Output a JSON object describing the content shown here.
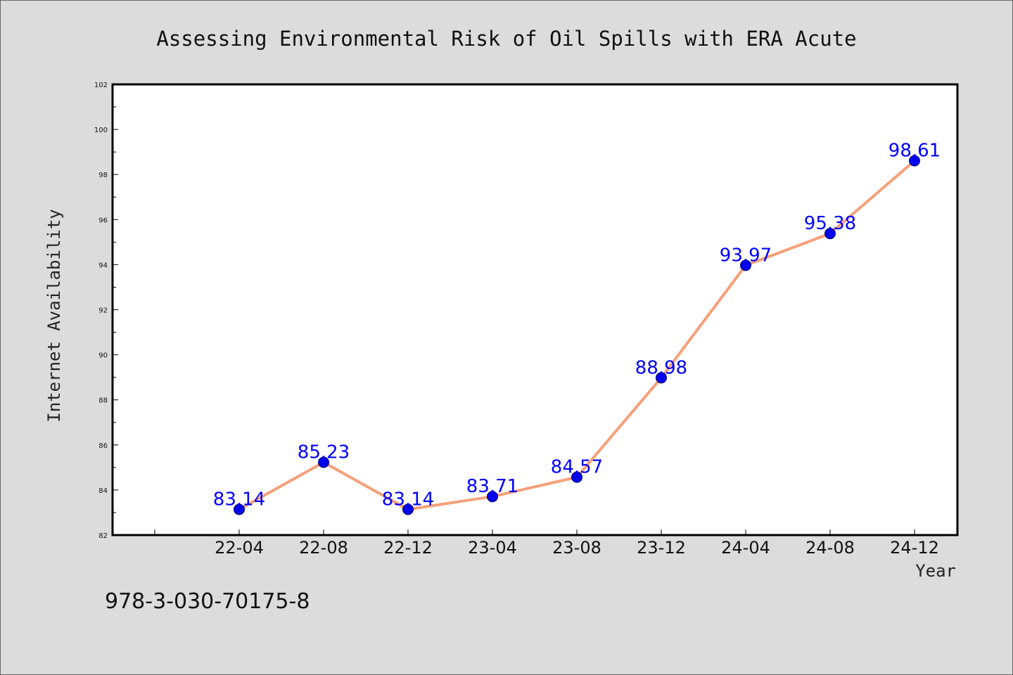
{
  "chart_data": {
    "type": "line",
    "title": "Assessing Environmental Risk of Oil Spills with ERA Acute",
    "xlabel": "Year",
    "ylabel": "Internet Availability",
    "categories": [
      "22-04",
      "22-08",
      "22-12",
      "23-04",
      "23-08",
      "23-12",
      "24-04",
      "24-08",
      "24-12"
    ],
    "values": [
      83.14,
      85.23,
      83.14,
      83.71,
      84.57,
      88.98,
      93.97,
      95.38,
      98.61
    ],
    "data_labels": [
      "83.14",
      "85.23",
      "83.14",
      "83.71",
      "84.57",
      "88.98",
      "93.97",
      "95.38",
      "98.61"
    ],
    "ylim": [
      82,
      102
    ],
    "yticks": [
      "82",
      "84",
      "86",
      "88",
      "90",
      "92",
      "94",
      "96",
      "98",
      "100",
      "102"
    ],
    "grid": false,
    "legend": "none",
    "colors": {
      "line": "#f5a07a",
      "marker": "#0000ee",
      "label": "#0000ff",
      "background": "#dcdcdc",
      "plot_area": "#ffffff"
    }
  },
  "footer": {
    "text": "978-3-030-70175-8"
  }
}
